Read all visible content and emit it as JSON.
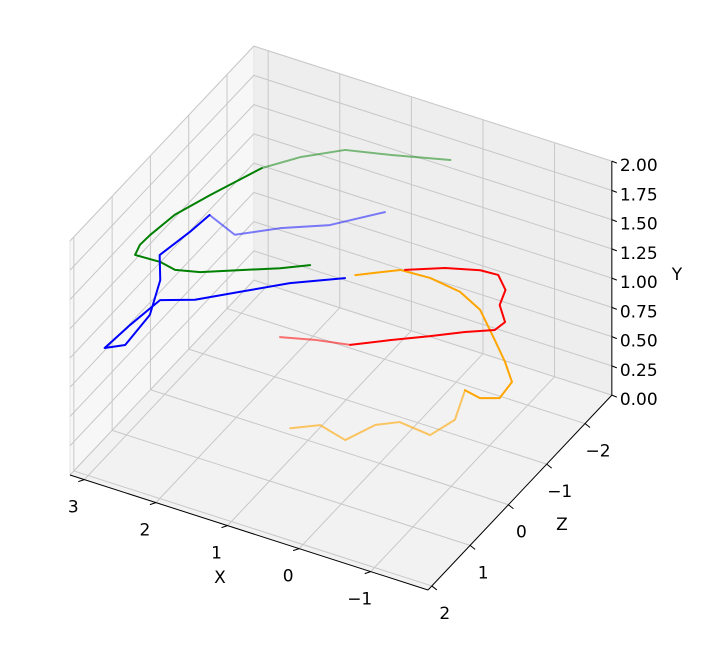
{
  "chart_data": {
    "type": "line3d",
    "xlabel": "X",
    "ylabel": "Y",
    "zlabel": "Z",
    "xlim": [
      -1.8,
      3.2
    ],
    "ylim": [
      0,
      2
    ],
    "zlim": [
      -2.7,
      2.1
    ],
    "xticks": [
      {
        "value": -1,
        "label": "−1"
      },
      0,
      1,
      2,
      3
    ],
    "yticks": [
      {
        "value": 0,
        "label": "0.00"
      },
      {
        "value": 0.25,
        "label": "0.25"
      },
      {
        "value": 0.5,
        "label": "0.50"
      },
      {
        "value": 0.75,
        "label": "0.75"
      },
      {
        "value": 1,
        "label": "1.00"
      },
      {
        "value": 1.25,
        "label": "1.25"
      },
      {
        "value": 1.5,
        "label": "1.50"
      },
      {
        "value": 1.75,
        "label": "1.75"
      },
      {
        "value": 2,
        "label": "2.00"
      }
    ],
    "zticks": [
      {
        "value": -2,
        "label": "−2"
      },
      {
        "value": -1,
        "label": "−1"
      },
      0,
      1,
      2
    ],
    "grid": true,
    "series": [
      {
        "color": "#008000",
        "alpha": 1,
        "x": [
          1.21,
          1.5,
          1.91,
          2.32,
          2.61,
          2.85,
          3.19,
          3.24,
          3.23,
          3.17,
          2.99,
          2.71
        ],
        "y": [
          1.3,
          1.3,
          1.3,
          1.3,
          1.3,
          1.3,
          1.3,
          1.3,
          1.3,
          1.3,
          1.3,
          1.3
        ],
        "z": [
          -0.45,
          -0.21,
          0.07,
          0.35,
          0.46,
          0.4,
          0.42,
          0.2,
          -0.05,
          -0.58,
          -1.17,
          -1.99
        ]
      },
      {
        "color": "#008000",
        "alpha": 0.5,
        "x": [
          2.71,
          2.41,
          2.0,
          1.47,
          0.77
        ],
        "y": [
          1.3,
          1.3,
          1.3,
          1.3,
          1.3
        ],
        "z": [
          -1.99,
          -2.43,
          -2.84,
          -3.02,
          -3.29
        ]
      },
      {
        "color": "#0000ff",
        "alpha": 1,
        "x": [
          1.06,
          1.6,
          2.05,
          2.45,
          2.82,
          2.89,
          2.93,
          2.74,
          2.78,
          3.02,
          3.28,
          3.19,
          3.15
        ],
        "y": [
          1,
          1,
          1,
          1,
          1,
          1,
          1,
          1,
          1,
          1,
          1,
          1,
          1
        ],
        "z": [
          -1.08,
          -0.65,
          -0.18,
          0.24,
          0.46,
          1.11,
          1.7,
          1.52,
          0.8,
          0.08,
          -0.39,
          -1.01,
          -1.45
        ]
      },
      {
        "color": "#0000ff",
        "alpha": 0.5,
        "x": [
          3.15,
          2.68,
          2.26,
          1.76,
          1.3
        ],
        "y": [
          1,
          1,
          1,
          1,
          1
        ],
        "z": [
          -1.45,
          -1.23,
          -1.63,
          -1.99,
          -2.57
        ]
      },
      {
        "color": "#ffa500",
        "alpha": 1,
        "x": [
          0.98,
          0.55,
          0.15,
          -0.31,
          -0.71,
          -1.17,
          -1.5,
          -1.78,
          -1.81,
          -1.6,
          -1.36
        ],
        "y": [
          1,
          1,
          1,
          1,
          1,
          1,
          1,
          1,
          1,
          1,
          1
        ],
        "z": [
          -1.2,
          -1.57,
          -1.6,
          -1.52,
          -1.3,
          -0.82,
          -0.47,
          -0.13,
          0.25,
          0.37,
          0.31
        ]
      },
      {
        "color": "#ffa500",
        "alpha": 0.6,
        "x": [
          -1.36,
          -1.55,
          -1.44,
          -0.98,
          -0.75,
          -0.58,
          -0.16,
          0.13
        ],
        "y": [
          1,
          1,
          1,
          1,
          1,
          1,
          1,
          1
        ],
        "z": [
          0.31,
          0.93,
          1.37,
          1.31,
          1.51,
          1.98,
          1.85,
          2.09
        ]
      },
      {
        "color": "#ff0000",
        "alpha": 1,
        "x": [
          0.5,
          0.09,
          -0.31,
          -0.55,
          -0.78,
          -0.87,
          -1.1,
          -1.07,
          -0.77,
          -0.44,
          -0.05,
          0.33
        ],
        "y": [
          1,
          1,
          1,
          1,
          1,
          1,
          1,
          1,
          1,
          1,
          1,
          1
        ],
        "z": [
          -1.6,
          -1.88,
          -2.05,
          -2.07,
          -1.83,
          -1.51,
          -1.22,
          -1.01,
          -0.79,
          -0.5,
          -0.18,
          0.15
        ]
      },
      {
        "color": "#ff0000",
        "alpha": 0.55,
        "x": [
          0.33,
          0.76,
          1.16
        ],
        "y": [
          1,
          1,
          1
        ],
        "z": [
          0.15,
          0.27,
          0.43
        ]
      }
    ]
  }
}
